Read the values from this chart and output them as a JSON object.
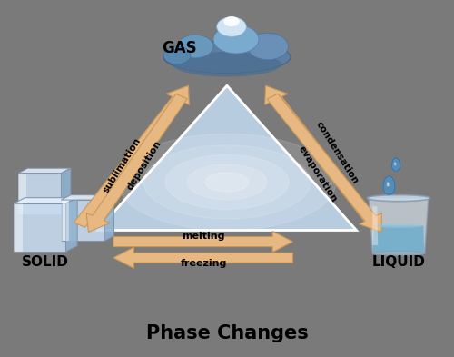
{
  "background_color": "#7a7a7a",
  "title": "Phase Changes",
  "title_fontsize": 15,
  "title_fontweight": "bold",
  "arrow_fill": "#e8b882",
  "arrow_edge": "#c8985a",
  "sublimation_label": "sublimation",
  "deposition_label": "deposition",
  "evaporation_label": "evaporation",
  "condensation_label": "condensation",
  "melting_label": "melting",
  "freezing_label": "freezing",
  "gas_label": "GAS",
  "solid_label": "SOLID",
  "liquid_label": "LIQUID",
  "label_fontsize": 11,
  "arrow_label_fontsize": 7.5
}
